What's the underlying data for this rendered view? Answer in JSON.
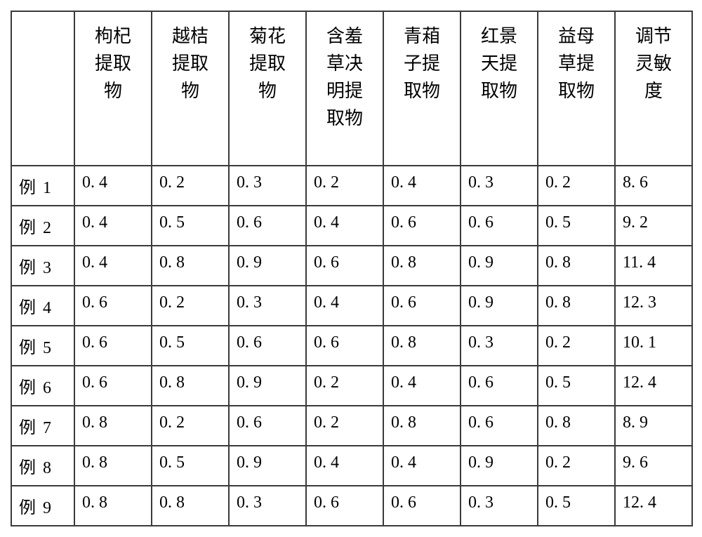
{
  "table": {
    "columns": [
      {
        "label": "",
        "col_class": "row-label-col"
      },
      {
        "label": "枸杞提取物",
        "col_class": "data-col"
      },
      {
        "label": "越桔提取物",
        "col_class": "data-col"
      },
      {
        "label": "菊花提取物",
        "col_class": "data-col"
      },
      {
        "label": "含羞草决明提取物",
        "col_class": "data-col"
      },
      {
        "label": "青葙子提取物",
        "col_class": "data-col"
      },
      {
        "label": "红景天提取物",
        "col_class": "data-col"
      },
      {
        "label": "益母草提取物",
        "col_class": "data-col"
      },
      {
        "label": "调节灵敏度",
        "col_class": "data-col"
      }
    ],
    "rows": [
      {
        "label_prefix": "例",
        "label_num": "1",
        "cells": [
          "0. 4",
          "0. 2",
          "0. 3",
          "0. 2",
          "0. 4",
          "0. 3",
          "0. 2",
          "8. 6"
        ]
      },
      {
        "label_prefix": "例",
        "label_num": "2",
        "cells": [
          "0. 4",
          "0. 5",
          "0. 6",
          "0. 4",
          "0. 6",
          "0. 6",
          "0. 5",
          "9. 2"
        ]
      },
      {
        "label_prefix": "例",
        "label_num": "3",
        "cells": [
          "0. 4",
          "0. 8",
          "0. 9",
          "0. 6",
          "0. 8",
          "0. 9",
          "0. 8",
          "11. 4"
        ]
      },
      {
        "label_prefix": "例",
        "label_num": "4",
        "cells": [
          "0. 6",
          "0. 2",
          "0. 3",
          "0. 4",
          "0. 6",
          "0. 9",
          "0. 8",
          "12. 3"
        ]
      },
      {
        "label_prefix": "例",
        "label_num": "5",
        "cells": [
          "0. 6",
          "0. 5",
          "0. 6",
          "0. 6",
          "0. 8",
          "0. 3",
          "0. 2",
          "10. 1"
        ]
      },
      {
        "label_prefix": "例",
        "label_num": "6",
        "cells": [
          "0. 6",
          "0. 8",
          "0. 9",
          "0. 2",
          "0. 4",
          "0. 6",
          "0. 5",
          "12. 4"
        ]
      },
      {
        "label_prefix": "例",
        "label_num": "7",
        "cells": [
          "0. 8",
          "0. 2",
          "0. 6",
          "0. 2",
          "0. 8",
          "0. 6",
          "0. 8",
          "8. 9"
        ]
      },
      {
        "label_prefix": "例",
        "label_num": "8",
        "cells": [
          "0. 8",
          "0. 5",
          "0. 9",
          "0. 4",
          "0. 4",
          "0. 9",
          "0. 2",
          "9. 6"
        ]
      },
      {
        "label_prefix": "例",
        "label_num": "9",
        "cells": [
          "0. 8",
          "0. 8",
          "0. 3",
          "0. 6",
          "0. 6",
          "0. 3",
          "0. 5",
          "12. 4"
        ]
      }
    ],
    "border_color": "#3a3a3a",
    "background_color": "#ffffff",
    "header_fontsize": 26,
    "cell_fontsize": 24,
    "header_font": "KaiTi",
    "cell_font": "SimSun"
  }
}
